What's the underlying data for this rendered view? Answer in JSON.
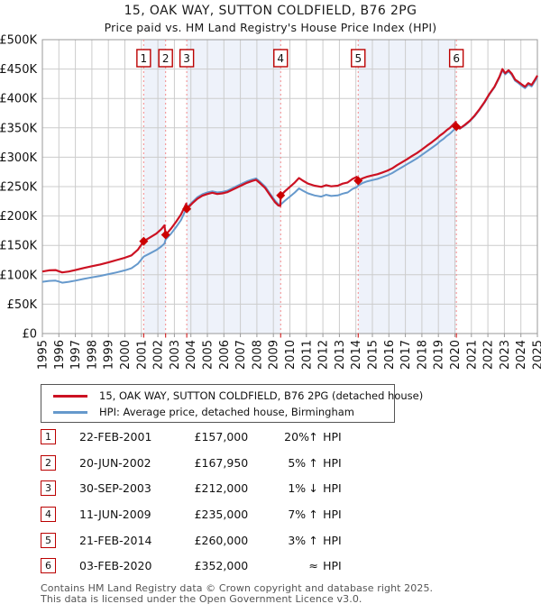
{
  "title": "15, OAK WAY, SUTTON COLDFIELD, B76 2PG",
  "subtitle": "Price paid vs. HM Land Registry's House Price Index (HPI)",
  "chart_data": {
    "type": "line",
    "unit": "GBP thousands",
    "xlim": [
      1995,
      2025
    ],
    "ylim": [
      0,
      500
    ],
    "grid": true,
    "legend_position": "bottom",
    "xticks": [
      1995,
      1996,
      1997,
      1998,
      1999,
      2000,
      2001,
      2002,
      2003,
      2004,
      2005,
      2006,
      2007,
      2008,
      2009,
      2010,
      2011,
      2012,
      2013,
      2014,
      2015,
      2016,
      2017,
      2018,
      2019,
      2020,
      2021,
      2022,
      2023,
      2024,
      2025
    ],
    "yticks": [
      0,
      50,
      100,
      150,
      200,
      250,
      300,
      350,
      400,
      450,
      500
    ],
    "ytick_labels": [
      "£0",
      "£50K",
      "£100K",
      "£150K",
      "£200K",
      "£250K",
      "£300K",
      "£350K",
      "£400K",
      "£450K",
      "£500K"
    ],
    "colors": {
      "property_line": "#cc1122",
      "hpi_line": "#6699cc",
      "sale_dashed_line": "#f48a8a",
      "sale_marker": "#cc0000",
      "band_fill": "#eef2fa",
      "grid_line": "#cccccc",
      "plot_border": "#999999",
      "number_box_border": "#bb0000"
    },
    "series": [
      {
        "name": "15, OAK WAY, SUTTON COLDFIELD, B76 2PG (detached house)",
        "color": "#cc1122",
        "points": [
          [
            1995.0,
            105.5
          ],
          [
            1995.4,
            107.5
          ],
          [
            1995.8,
            108
          ],
          [
            1996.0,
            106
          ],
          [
            1996.2,
            104
          ],
          [
            1996.6,
            105.5
          ],
          [
            1997.0,
            108
          ],
          [
            1997.5,
            111.5
          ],
          [
            1998.0,
            114.5
          ],
          [
            1998.5,
            117.5
          ],
          [
            1999.0,
            121
          ],
          [
            1999.5,
            125
          ],
          [
            2000.0,
            129
          ],
          [
            2000.4,
            133
          ],
          [
            2000.8,
            143
          ],
          [
            2001.14,
            157
          ],
          [
            2001.5,
            163
          ],
          [
            2001.9,
            170
          ],
          [
            2002.2,
            177.5
          ],
          [
            2002.4,
            184
          ],
          [
            2002.47,
            168
          ],
          [
            2002.8,
            178.5
          ],
          [
            2003.1,
            190
          ],
          [
            2003.4,
            202.5
          ],
          [
            2003.72,
            221
          ],
          [
            2003.75,
            212
          ],
          [
            2004.1,
            222
          ],
          [
            2004.4,
            229.5
          ],
          [
            2004.7,
            234.5
          ],
          [
            2005.0,
            237.5
          ],
          [
            2005.3,
            239.5
          ],
          [
            2005.6,
            237.5
          ],
          [
            2005.9,
            238.5
          ],
          [
            2006.2,
            240.5
          ],
          [
            2006.5,
            244.5
          ],
          [
            2006.8,
            248.5
          ],
          [
            2007.1,
            252.5
          ],
          [
            2007.4,
            256.5
          ],
          [
            2007.7,
            259.5
          ],
          [
            2007.95,
            261.5
          ],
          [
            2008.2,
            255.5
          ],
          [
            2008.5,
            247.5
          ],
          [
            2008.8,
            235.5
          ],
          [
            2009.1,
            223.5
          ],
          [
            2009.3,
            218
          ],
          [
            2009.42,
            217
          ],
          [
            2009.44,
            235
          ],
          [
            2009.7,
            242
          ],
          [
            2010.0,
            249.5
          ],
          [
            2010.3,
            257
          ],
          [
            2010.55,
            264.5
          ],
          [
            2010.8,
            260
          ],
          [
            2011.1,
            255
          ],
          [
            2011.5,
            251.5
          ],
          [
            2011.9,
            249.5
          ],
          [
            2012.2,
            252.5
          ],
          [
            2012.5,
            250.5
          ],
          [
            2012.9,
            251.5
          ],
          [
            2013.2,
            255
          ],
          [
            2013.5,
            257
          ],
          [
            2013.8,
            263
          ],
          [
            2014.05,
            266.5
          ],
          [
            2014.14,
            260
          ],
          [
            2014.4,
            264
          ],
          [
            2014.7,
            267
          ],
          [
            2015.0,
            269
          ],
          [
            2015.3,
            271
          ],
          [
            2015.6,
            274
          ],
          [
            2015.9,
            277
          ],
          [
            2016.2,
            281
          ],
          [
            2016.5,
            286.5
          ],
          [
            2016.8,
            291.5
          ],
          [
            2017.1,
            296.5
          ],
          [
            2017.4,
            302
          ],
          [
            2017.7,
            307
          ],
          [
            2018.0,
            313
          ],
          [
            2018.3,
            319.5
          ],
          [
            2018.6,
            325.5
          ],
          [
            2018.9,
            332
          ],
          [
            2019.1,
            337
          ],
          [
            2019.3,
            341
          ],
          [
            2019.5,
            346
          ],
          [
            2019.7,
            350
          ],
          [
            2019.95,
            357
          ],
          [
            2020.05,
            360
          ],
          [
            2020.09,
            352
          ],
          [
            2020.3,
            349
          ],
          [
            2020.6,
            355
          ],
          [
            2020.9,
            362
          ],
          [
            2021.2,
            371
          ],
          [
            2021.5,
            382
          ],
          [
            2021.8,
            394
          ],
          [
            2022.1,
            408
          ],
          [
            2022.4,
            420
          ],
          [
            2022.7,
            437
          ],
          [
            2022.88,
            450
          ],
          [
            2023.05,
            443
          ],
          [
            2023.25,
            448
          ],
          [
            2023.45,
            442
          ],
          [
            2023.65,
            432
          ],
          [
            2023.85,
            428
          ],
          [
            2024.05,
            424
          ],
          [
            2024.25,
            420
          ],
          [
            2024.45,
            426
          ],
          [
            2024.65,
            423
          ],
          [
            2024.85,
            432
          ],
          [
            2025.0,
            439
          ]
        ]
      },
      {
        "name": "HPI: Average price, detached house, Birmingham",
        "color": "#6699cc",
        "points": [
          [
            1995.0,
            88
          ],
          [
            1995.4,
            89.5
          ],
          [
            1995.8,
            90
          ],
          [
            1996.0,
            88.5
          ],
          [
            1996.2,
            86.5
          ],
          [
            1996.6,
            88
          ],
          [
            1997.0,
            90
          ],
          [
            1997.5,
            93
          ],
          [
            1998.0,
            95.5
          ],
          [
            1998.5,
            98
          ],
          [
            1999.0,
            101
          ],
          [
            1999.5,
            104
          ],
          [
            2000.0,
            107.5
          ],
          [
            2000.4,
            111
          ],
          [
            2000.8,
            119
          ],
          [
            2001.14,
            131
          ],
          [
            2001.5,
            136
          ],
          [
            2001.9,
            142
          ],
          [
            2002.2,
            148
          ],
          [
            2002.4,
            153
          ],
          [
            2002.47,
            160
          ],
          [
            2002.8,
            170
          ],
          [
            2003.1,
            181
          ],
          [
            2003.4,
            193
          ],
          [
            2003.75,
            214
          ],
          [
            2004.1,
            224
          ],
          [
            2004.4,
            232
          ],
          [
            2004.7,
            237
          ],
          [
            2005.0,
            240
          ],
          [
            2005.3,
            242
          ],
          [
            2005.6,
            240
          ],
          [
            2005.9,
            241
          ],
          [
            2006.2,
            243
          ],
          [
            2006.5,
            247
          ],
          [
            2006.8,
            251
          ],
          [
            2007.1,
            255
          ],
          [
            2007.4,
            259
          ],
          [
            2007.7,
            262
          ],
          [
            2007.95,
            264
          ],
          [
            2008.2,
            258
          ],
          [
            2008.5,
            250
          ],
          [
            2008.8,
            238
          ],
          [
            2009.1,
            226
          ],
          [
            2009.3,
            220
          ],
          [
            2009.44,
            219.5
          ],
          [
            2009.7,
            226
          ],
          [
            2010.0,
            233
          ],
          [
            2010.3,
            240
          ],
          [
            2010.55,
            247
          ],
          [
            2010.8,
            243
          ],
          [
            2011.1,
            238.5
          ],
          [
            2011.5,
            235
          ],
          [
            2011.9,
            233
          ],
          [
            2012.2,
            236
          ],
          [
            2012.5,
            234
          ],
          [
            2012.9,
            235
          ],
          [
            2013.2,
            238
          ],
          [
            2013.5,
            240
          ],
          [
            2013.8,
            246
          ],
          [
            2014.05,
            249
          ],
          [
            2014.14,
            252
          ],
          [
            2014.4,
            256
          ],
          [
            2014.7,
            259
          ],
          [
            2015.0,
            261
          ],
          [
            2015.3,
            263
          ],
          [
            2015.6,
            266
          ],
          [
            2015.9,
            269
          ],
          [
            2016.2,
            273
          ],
          [
            2016.5,
            278
          ],
          [
            2016.8,
            283
          ],
          [
            2017.1,
            288
          ],
          [
            2017.4,
            293
          ],
          [
            2017.7,
            298
          ],
          [
            2018.0,
            304
          ],
          [
            2018.3,
            310
          ],
          [
            2018.6,
            316
          ],
          [
            2018.9,
            322
          ],
          [
            2019.1,
            327
          ],
          [
            2019.3,
            331
          ],
          [
            2019.5,
            336
          ],
          [
            2019.7,
            340
          ],
          [
            2019.95,
            347
          ],
          [
            2020.09,
            352
          ],
          [
            2020.3,
            348.5
          ],
          [
            2020.6,
            354
          ],
          [
            2020.9,
            361
          ],
          [
            2021.2,
            370
          ],
          [
            2021.5,
            381
          ],
          [
            2021.8,
            393
          ],
          [
            2022.1,
            407
          ],
          [
            2022.4,
            419
          ],
          [
            2022.7,
            435.5
          ],
          [
            2022.88,
            448
          ],
          [
            2023.05,
            441
          ],
          [
            2023.25,
            446
          ],
          [
            2023.45,
            440
          ],
          [
            2023.65,
            430
          ],
          [
            2023.85,
            426
          ],
          [
            2024.05,
            421.5
          ],
          [
            2024.25,
            417.5
          ],
          [
            2024.45,
            423.5
          ],
          [
            2024.65,
            420.5
          ],
          [
            2024.85,
            429.5
          ],
          [
            2025.0,
            437
          ]
        ]
      }
    ],
    "sales": [
      {
        "n": "1",
        "x": 2001.14,
        "price_k": 157
      },
      {
        "n": "2",
        "x": 2002.47,
        "price_k": 168
      },
      {
        "n": "3",
        "x": 2003.75,
        "price_k": 212
      },
      {
        "n": "4",
        "x": 2009.44,
        "price_k": 235
      },
      {
        "n": "5",
        "x": 2014.14,
        "price_k": 260
      },
      {
        "n": "6",
        "x": 2020.09,
        "price_k": 352
      }
    ],
    "shaded_sale_spans": [
      [
        2001.14,
        2002.47
      ],
      [
        2003.75,
        2009.44
      ],
      [
        2014.14,
        2020.09
      ]
    ]
  },
  "legend": {
    "items": [
      {
        "label": "15, OAK WAY, SUTTON COLDFIELD, B76 2PG (detached house)",
        "color": "#cc1122"
      },
      {
        "label": "HPI: Average price, detached house, Birmingham",
        "color": "#6699cc"
      }
    ]
  },
  "table": {
    "rows": [
      {
        "n": "1",
        "date": "22-FEB-2001",
        "price": "£157,000",
        "pct": "20%",
        "dir": "↑",
        "hpi": "HPI"
      },
      {
        "n": "2",
        "date": "20-JUN-2002",
        "price": "£167,950",
        "pct": "5%",
        "dir": "↑",
        "hpi": "HPI"
      },
      {
        "n": "3",
        "date": "30-SEP-2003",
        "price": "£212,000",
        "pct": "1%",
        "dir": "↓",
        "hpi": "HPI"
      },
      {
        "n": "4",
        "date": "11-JUN-2009",
        "price": "£235,000",
        "pct": "7%",
        "dir": "↑",
        "hpi": "HPI"
      },
      {
        "n": "5",
        "date": "21-FEB-2014",
        "price": "£260,000",
        "pct": "3%",
        "dir": "↑",
        "hpi": "HPI"
      },
      {
        "n": "6",
        "date": "03-FEB-2020",
        "price": "£352,000",
        "pct": "",
        "dir": "≈",
        "hpi": "HPI"
      }
    ]
  },
  "footer": {
    "line1": "Contains HM Land Registry data © Crown copyright and database right 2025.",
    "line2": "This data is licensed under the Open Government Licence v3.0."
  }
}
